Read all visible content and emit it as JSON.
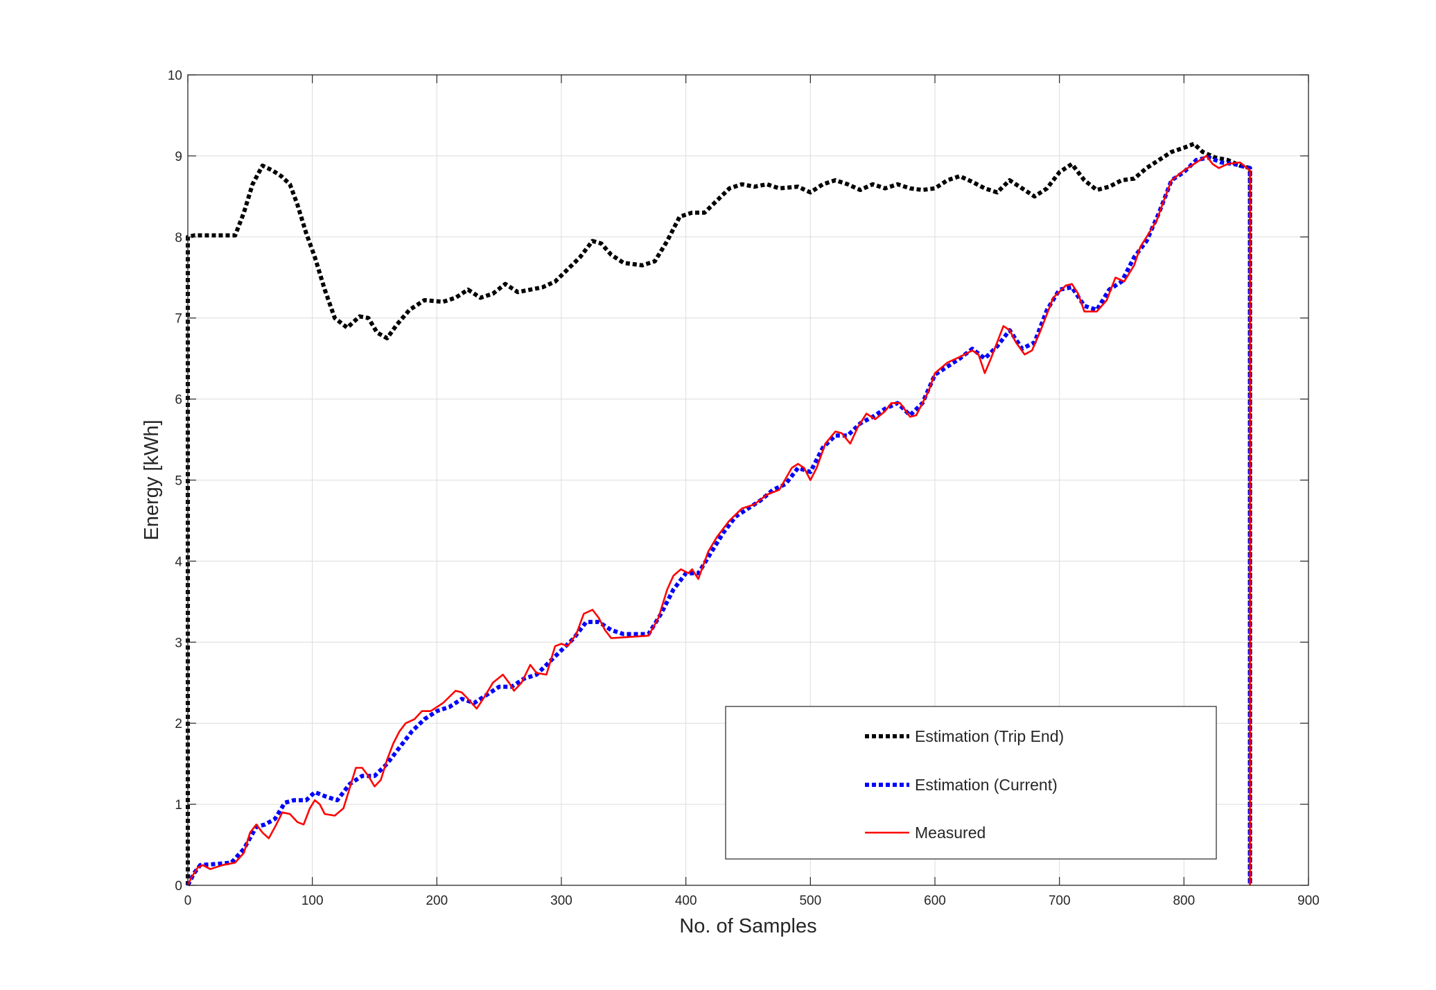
{
  "chart_data": {
    "type": "line",
    "title": "",
    "xlabel": "No. of Samples",
    "ylabel": "Energy [kWh]",
    "xlim": [
      0,
      900
    ],
    "ylim": [
      0,
      10
    ],
    "xticks": [
      0,
      100,
      200,
      300,
      400,
      500,
      600,
      700,
      800,
      900
    ],
    "yticks": [
      0,
      1,
      2,
      3,
      4,
      5,
      6,
      7,
      8,
      9,
      10
    ],
    "grid": true,
    "legend": {
      "placement": "bottom-right"
    },
    "series": [
      {
        "name": "Estimation (Trip End)",
        "color": "#000000",
        "style": "dotted",
        "points": [
          [
            0,
            0
          ],
          [
            0,
            8.0
          ],
          [
            5,
            8.02
          ],
          [
            15,
            8.02
          ],
          [
            38,
            8.02
          ],
          [
            45,
            8.3
          ],
          [
            52,
            8.65
          ],
          [
            60,
            8.88
          ],
          [
            68,
            8.82
          ],
          [
            75,
            8.75
          ],
          [
            82,
            8.65
          ],
          [
            88,
            8.4
          ],
          [
            95,
            8.05
          ],
          [
            102,
            7.75
          ],
          [
            110,
            7.35
          ],
          [
            118,
            7.0
          ],
          [
            128,
            6.88
          ],
          [
            138,
            7.02
          ],
          [
            145,
            7.0
          ],
          [
            152,
            6.82
          ],
          [
            160,
            6.75
          ],
          [
            168,
            6.92
          ],
          [
            178,
            7.1
          ],
          [
            190,
            7.22
          ],
          [
            205,
            7.2
          ],
          [
            215,
            7.25
          ],
          [
            225,
            7.35
          ],
          [
            235,
            7.25
          ],
          [
            245,
            7.3
          ],
          [
            255,
            7.42
          ],
          [
            265,
            7.32
          ],
          [
            275,
            7.35
          ],
          [
            285,
            7.38
          ],
          [
            295,
            7.45
          ],
          [
            305,
            7.6
          ],
          [
            315,
            7.75
          ],
          [
            325,
            7.95
          ],
          [
            332,
            7.92
          ],
          [
            340,
            7.78
          ],
          [
            350,
            7.68
          ],
          [
            365,
            7.65
          ],
          [
            375,
            7.7
          ],
          [
            385,
            7.95
          ],
          [
            395,
            8.25
          ],
          [
            405,
            8.3
          ],
          [
            415,
            8.3
          ],
          [
            425,
            8.45
          ],
          [
            435,
            8.6
          ],
          [
            445,
            8.65
          ],
          [
            455,
            8.62
          ],
          [
            465,
            8.65
          ],
          [
            475,
            8.6
          ],
          [
            490,
            8.62
          ],
          [
            500,
            8.55
          ],
          [
            510,
            8.65
          ],
          [
            520,
            8.7
          ],
          [
            530,
            8.65
          ],
          [
            540,
            8.58
          ],
          [
            550,
            8.65
          ],
          [
            560,
            8.6
          ],
          [
            570,
            8.65
          ],
          [
            580,
            8.6
          ],
          [
            590,
            8.58
          ],
          [
            600,
            8.6
          ],
          [
            610,
            8.7
          ],
          [
            620,
            8.75
          ],
          [
            630,
            8.68
          ],
          [
            640,
            8.6
          ],
          [
            650,
            8.55
          ],
          [
            660,
            8.7
          ],
          [
            670,
            8.6
          ],
          [
            680,
            8.5
          ],
          [
            690,
            8.6
          ],
          [
            700,
            8.8
          ],
          [
            710,
            8.9
          ],
          [
            720,
            8.7
          ],
          [
            730,
            8.58
          ],
          [
            740,
            8.62
          ],
          [
            750,
            8.7
          ],
          [
            760,
            8.72
          ],
          [
            770,
            8.85
          ],
          [
            780,
            8.95
          ],
          [
            790,
            9.05
          ],
          [
            800,
            9.1
          ],
          [
            808,
            9.15
          ],
          [
            815,
            9.05
          ],
          [
            825,
            8.98
          ],
          [
            835,
            8.95
          ],
          [
            845,
            8.88
          ],
          [
            853,
            8.85
          ],
          [
            853,
            0
          ]
        ]
      },
      {
        "name": "Estimation (Current)",
        "color": "#0000ff",
        "style": "dotted",
        "points": [
          [
            0,
            0
          ],
          [
            5,
            0.15
          ],
          [
            10,
            0.25
          ],
          [
            20,
            0.26
          ],
          [
            35,
            0.28
          ],
          [
            45,
            0.45
          ],
          [
            55,
            0.72
          ],
          [
            62,
            0.75
          ],
          [
            70,
            0.82
          ],
          [
            78,
            1.02
          ],
          [
            85,
            1.05
          ],
          [
            95,
            1.05
          ],
          [
            102,
            1.15
          ],
          [
            110,
            1.1
          ],
          [
            120,
            1.05
          ],
          [
            130,
            1.25
          ],
          [
            140,
            1.35
          ],
          [
            150,
            1.35
          ],
          [
            160,
            1.5
          ],
          [
            170,
            1.7
          ],
          [
            180,
            1.9
          ],
          [
            190,
            2.05
          ],
          [
            200,
            2.15
          ],
          [
            210,
            2.2
          ],
          [
            220,
            2.3
          ],
          [
            230,
            2.25
          ],
          [
            240,
            2.35
          ],
          [
            250,
            2.45
          ],
          [
            260,
            2.45
          ],
          [
            270,
            2.55
          ],
          [
            280,
            2.6
          ],
          [
            290,
            2.75
          ],
          [
            300,
            2.9
          ],
          [
            310,
            3.05
          ],
          [
            320,
            3.25
          ],
          [
            330,
            3.25
          ],
          [
            340,
            3.15
          ],
          [
            350,
            3.1
          ],
          [
            370,
            3.1
          ],
          [
            380,
            3.35
          ],
          [
            390,
            3.65
          ],
          [
            400,
            3.85
          ],
          [
            410,
            3.85
          ],
          [
            420,
            4.1
          ],
          [
            430,
            4.35
          ],
          [
            440,
            4.55
          ],
          [
            450,
            4.65
          ],
          [
            460,
            4.75
          ],
          [
            470,
            4.88
          ],
          [
            480,
            4.95
          ],
          [
            490,
            5.15
          ],
          [
            500,
            5.1
          ],
          [
            510,
            5.4
          ],
          [
            520,
            5.55
          ],
          [
            530,
            5.55
          ],
          [
            540,
            5.7
          ],
          [
            550,
            5.78
          ],
          [
            560,
            5.88
          ],
          [
            570,
            5.95
          ],
          [
            580,
            5.8
          ],
          [
            590,
            5.95
          ],
          [
            600,
            6.3
          ],
          [
            610,
            6.4
          ],
          [
            620,
            6.5
          ],
          [
            630,
            6.62
          ],
          [
            640,
            6.5
          ],
          [
            650,
            6.65
          ],
          [
            660,
            6.85
          ],
          [
            670,
            6.62
          ],
          [
            680,
            6.7
          ],
          [
            690,
            7.1
          ],
          [
            700,
            7.35
          ],
          [
            710,
            7.38
          ],
          [
            720,
            7.15
          ],
          [
            730,
            7.1
          ],
          [
            740,
            7.35
          ],
          [
            750,
            7.45
          ],
          [
            760,
            7.75
          ],
          [
            770,
            7.95
          ],
          [
            780,
            8.3
          ],
          [
            790,
            8.7
          ],
          [
            800,
            8.8
          ],
          [
            810,
            8.95
          ],
          [
            820,
            8.98
          ],
          [
            830,
            8.92
          ],
          [
            840,
            8.9
          ],
          [
            853,
            8.85
          ],
          [
            853,
            0
          ]
        ]
      },
      {
        "name": "Measured",
        "color": "#ff0000",
        "style": "solid",
        "points": [
          [
            0,
            0
          ],
          [
            3,
            0.1
          ],
          [
            8,
            0.22
          ],
          [
            12,
            0.25
          ],
          [
            18,
            0.2
          ],
          [
            28,
            0.25
          ],
          [
            38,
            0.28
          ],
          [
            45,
            0.4
          ],
          [
            50,
            0.65
          ],
          [
            55,
            0.75
          ],
          [
            60,
            0.65
          ],
          [
            65,
            0.58
          ],
          [
            70,
            0.72
          ],
          [
            76,
            0.9
          ],
          [
            82,
            0.88
          ],
          [
            88,
            0.78
          ],
          [
            93,
            0.75
          ],
          [
            98,
            0.95
          ],
          [
            102,
            1.05
          ],
          [
            106,
            1.0
          ],
          [
            110,
            0.88
          ],
          [
            118,
            0.86
          ],
          [
            125,
            0.95
          ],
          [
            130,
            1.2
          ],
          [
            135,
            1.45
          ],
          [
            140,
            1.45
          ],
          [
            145,
            1.35
          ],
          [
            150,
            1.22
          ],
          [
            155,
            1.3
          ],
          [
            160,
            1.55
          ],
          [
            165,
            1.75
          ],
          [
            170,
            1.9
          ],
          [
            175,
            2.0
          ],
          [
            182,
            2.05
          ],
          [
            188,
            2.15
          ],
          [
            195,
            2.15
          ],
          [
            205,
            2.25
          ],
          [
            215,
            2.4
          ],
          [
            220,
            2.38
          ],
          [
            225,
            2.3
          ],
          [
            232,
            2.18
          ],
          [
            238,
            2.32
          ],
          [
            245,
            2.5
          ],
          [
            253,
            2.6
          ],
          [
            258,
            2.5
          ],
          [
            262,
            2.4
          ],
          [
            268,
            2.5
          ],
          [
            275,
            2.72
          ],
          [
            280,
            2.62
          ],
          [
            288,
            2.6
          ],
          [
            295,
            2.95
          ],
          [
            300,
            2.98
          ],
          [
            305,
            2.95
          ],
          [
            312,
            3.1
          ],
          [
            318,
            3.35
          ],
          [
            325,
            3.4
          ],
          [
            330,
            3.3
          ],
          [
            335,
            3.15
          ],
          [
            340,
            3.05
          ],
          [
            350,
            3.06
          ],
          [
            370,
            3.08
          ],
          [
            378,
            3.3
          ],
          [
            385,
            3.65
          ],
          [
            390,
            3.82
          ],
          [
            396,
            3.9
          ],
          [
            402,
            3.85
          ],
          [
            405,
            3.9
          ],
          [
            410,
            3.78
          ],
          [
            418,
            4.12
          ],
          [
            425,
            4.3
          ],
          [
            435,
            4.5
          ],
          [
            445,
            4.65
          ],
          [
            455,
            4.7
          ],
          [
            465,
            4.82
          ],
          [
            475,
            4.88
          ],
          [
            485,
            5.15
          ],
          [
            490,
            5.2
          ],
          [
            495,
            5.15
          ],
          [
            500,
            5.0
          ],
          [
            505,
            5.15
          ],
          [
            512,
            5.45
          ],
          [
            520,
            5.6
          ],
          [
            525,
            5.58
          ],
          [
            532,
            5.45
          ],
          [
            538,
            5.65
          ],
          [
            545,
            5.82
          ],
          [
            552,
            5.75
          ],
          [
            560,
            5.85
          ],
          [
            565,
            5.95
          ],
          [
            572,
            5.95
          ],
          [
            580,
            5.78
          ],
          [
            585,
            5.8
          ],
          [
            595,
            6.1
          ],
          [
            600,
            6.32
          ],
          [
            610,
            6.45
          ],
          [
            620,
            6.52
          ],
          [
            630,
            6.6
          ],
          [
            635,
            6.55
          ],
          [
            640,
            6.32
          ],
          [
            645,
            6.5
          ],
          [
            655,
            6.9
          ],
          [
            660,
            6.85
          ],
          [
            665,
            6.7
          ],
          [
            672,
            6.55
          ],
          [
            678,
            6.6
          ],
          [
            685,
            6.85
          ],
          [
            695,
            7.25
          ],
          [
            705,
            7.4
          ],
          [
            710,
            7.42
          ],
          [
            715,
            7.3
          ],
          [
            720,
            7.08
          ],
          [
            730,
            7.08
          ],
          [
            738,
            7.22
          ],
          [
            745,
            7.5
          ],
          [
            752,
            7.45
          ],
          [
            760,
            7.65
          ],
          [
            765,
            7.88
          ],
          [
            770,
            8.0
          ],
          [
            778,
            8.2
          ],
          [
            785,
            8.5
          ],
          [
            790,
            8.7
          ],
          [
            800,
            8.82
          ],
          [
            808,
            8.9
          ],
          [
            818,
            9.0
          ],
          [
            823,
            8.9
          ],
          [
            828,
            8.85
          ],
          [
            835,
            8.9
          ],
          [
            845,
            8.92
          ],
          [
            853,
            8.82
          ],
          [
            853,
            0
          ]
        ]
      }
    ]
  }
}
